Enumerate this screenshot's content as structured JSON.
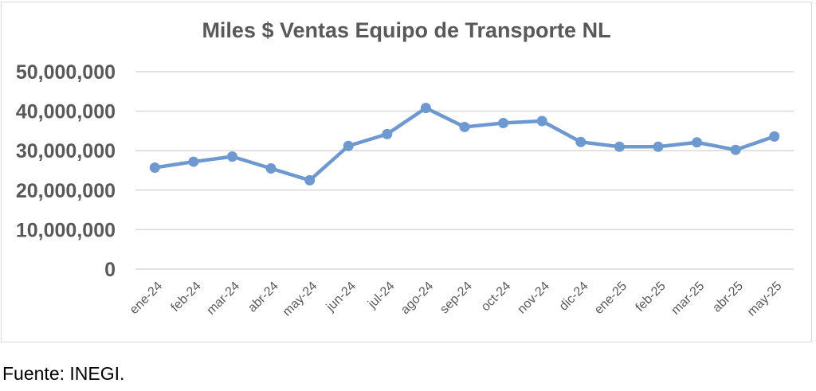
{
  "chart_data": {
    "type": "line",
    "title": "Miles $ Ventas Equipo de Transporte NL",
    "xlabel": "",
    "ylabel": "",
    "categories": [
      "ene-24",
      "feb-24",
      "mar-24",
      "abr-24",
      "may-24",
      "jun-24",
      "jul-24",
      "ago-24",
      "sep-24",
      "oct-24",
      "nov-24",
      "dic-24",
      "ene-25",
      "feb-25",
      "mar-25",
      "abr-25",
      "may-25"
    ],
    "series": [
      {
        "values": [
          25700000,
          27200000,
          28500000,
          25500000,
          22500000,
          31200000,
          34200000,
          40800000,
          36000000,
          37000000,
          37500000,
          32200000,
          31000000,
          31000000,
          32100000,
          30200000,
          33600000
        ]
      }
    ],
    "ylim": [
      0,
      50000000
    ],
    "yticks": [
      0,
      10000000,
      20000000,
      30000000,
      40000000,
      50000000
    ],
    "ytick_labels": [
      "0",
      "10,000,000",
      "20,000,000",
      "30,000,000",
      "40,000,000",
      "50,000,000"
    ],
    "grid": true,
    "line_color": "#6e99d0",
    "grid_color": "#d9d9d9"
  },
  "source_note": "Fuente: INEGI."
}
